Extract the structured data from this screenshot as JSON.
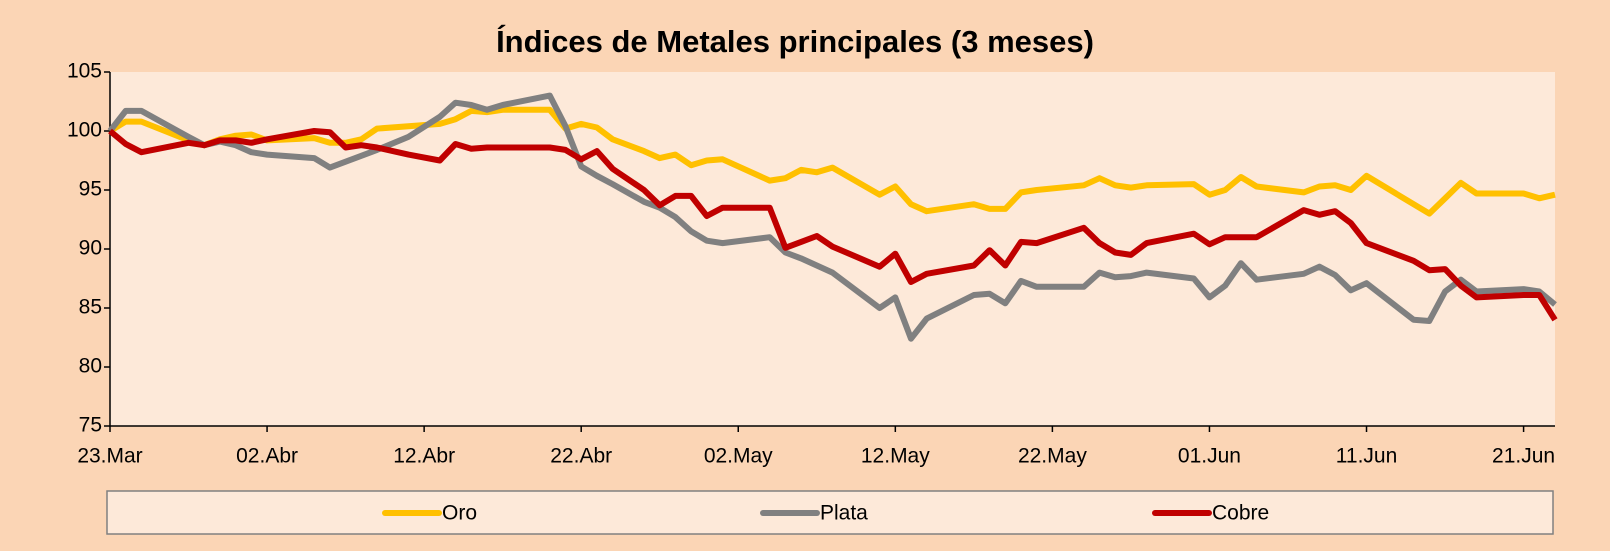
{
  "chart_data": {
    "type": "line",
    "title": "Índices de Metales principales (3 meses)",
    "x": [
      "23.Mar",
      "24.Mar",
      "25.Mar",
      "28.Mar",
      "29.Mar",
      "30.Mar",
      "31.Mar",
      "01.Abr",
      "02.Abr",
      "05.Abr",
      "06.Abr",
      "07.Abr",
      "08.Abr",
      "09.Abr",
      "11.Abr",
      "13.Abr",
      "14.Abr",
      "15.Abr",
      "16.Abr",
      "17.Abr",
      "20.Abr",
      "21.Abr",
      "22.Abr",
      "23.Abr",
      "24.Abr",
      "26.Abr",
      "27.Abr",
      "28.Abr",
      "29.Abr",
      "30.Abr",
      "01.May",
      "04.May",
      "05.May",
      "06.May",
      "07.May",
      "08.May",
      "11.May",
      "12.May",
      "13.May",
      "14.May",
      "17.May",
      "18.May",
      "19.May",
      "20.May",
      "21.May",
      "24.May",
      "25.May",
      "26.May",
      "27.May",
      "28.May",
      "31.May",
      "01.Jun",
      "02.Jun",
      "03.Jun",
      "04.Jun",
      "07.Jun",
      "08.Jun",
      "09.Jun",
      "10.Jun",
      "11.Jun",
      "14.Jun",
      "15.Jun",
      "16.Jun",
      "17.Jun",
      "18.Jun",
      "21.Jun",
      "22.Jun",
      "23.Jun"
    ],
    "series": [
      {
        "name": "Oro",
        "color": "#ffc000",
        "values": [
          100,
          100.8,
          100.8,
          99.2,
          98.8,
          99.3,
          99.6,
          99.7,
          99.2,
          99.4,
          99.0,
          99.0,
          99.3,
          100.2,
          100.4,
          100.6,
          101.0,
          101.7,
          101.6,
          101.8,
          101.8,
          100.2,
          100.6,
          100.3,
          99.3,
          98.3,
          97.7,
          98.0,
          97.1,
          97.5,
          97.6,
          95.8,
          96.0,
          96.7,
          96.5,
          96.9,
          94.6,
          95.3,
          93.8,
          93.2,
          93.8,
          93.4,
          93.4,
          94.8,
          95.0,
          95.4,
          96.0,
          95.4,
          95.2,
          95.4,
          95.5,
          94.6,
          95.0,
          96.1,
          95.3,
          94.8,
          95.3,
          95.4,
          95.0,
          96.2,
          93.8,
          93.0,
          94.3,
          95.6,
          94.7,
          94.7,
          94.3,
          94.6
        ]
      },
      {
        "name": "Plata",
        "color": "#808080",
        "values": [
          100,
          101.7,
          101.7,
          99.5,
          98.8,
          99.1,
          98.8,
          98.2,
          98.0,
          97.7,
          96.9,
          97.4,
          97.9,
          98.4,
          99.5,
          101.2,
          102.4,
          102.2,
          101.8,
          102.2,
          103.0,
          100.4,
          97.0,
          96.2,
          95.5,
          94.0,
          93.5,
          92.7,
          91.5,
          90.7,
          90.5,
          91.0,
          89.7,
          89.2,
          88.6,
          88.0,
          85.0,
          85.9,
          82.4,
          84.1,
          86.1,
          86.2,
          85.4,
          87.3,
          86.8,
          86.8,
          88.0,
          87.6,
          87.7,
          88.0,
          87.5,
          85.9,
          86.9,
          88.8,
          87.4,
          87.9,
          88.5,
          87.8,
          86.5,
          87.1,
          84.0,
          83.9,
          86.4,
          87.4,
          86.4,
          86.6,
          86.4,
          85.3
        ]
      },
      {
        "name": "Cobre",
        "color": "#c00000",
        "values": [
          100,
          98.9,
          98.2,
          99.0,
          98.8,
          99.2,
          99.2,
          99.0,
          99.3,
          100.0,
          99.9,
          98.6,
          98.8,
          98.6,
          98.0,
          97.5,
          98.9,
          98.5,
          98.6,
          98.6,
          98.6,
          98.4,
          97.6,
          98.3,
          96.8,
          95.0,
          93.7,
          94.5,
          94.5,
          92.8,
          93.5,
          93.5,
          90.1,
          90.6,
          91.1,
          90.2,
          88.5,
          89.6,
          87.2,
          87.9,
          88.6,
          89.9,
          88.6,
          90.6,
          90.5,
          91.8,
          90.5,
          89.7,
          89.5,
          90.5,
          91.3,
          90.4,
          91.0,
          91.0,
          91.0,
          93.3,
          92.9,
          93.2,
          92.2,
          90.5,
          89.0,
          88.2,
          88.3,
          86.9,
          85.9,
          86.1,
          86.1,
          84.0
        ]
      }
    ],
    "xlim": [
      "23.Mar",
      "23.Jun"
    ],
    "xticks": [
      "23.Mar",
      "02.Abr",
      "12.Abr",
      "22.Abr",
      "02.May",
      "12.May",
      "22.May",
      "01.Jun",
      "11.Jun",
      "21.Jun"
    ],
    "ylim": [
      75,
      105
    ],
    "yticks": [
      75,
      80,
      85,
      90,
      95,
      100,
      105
    ],
    "grid": false
  }
}
